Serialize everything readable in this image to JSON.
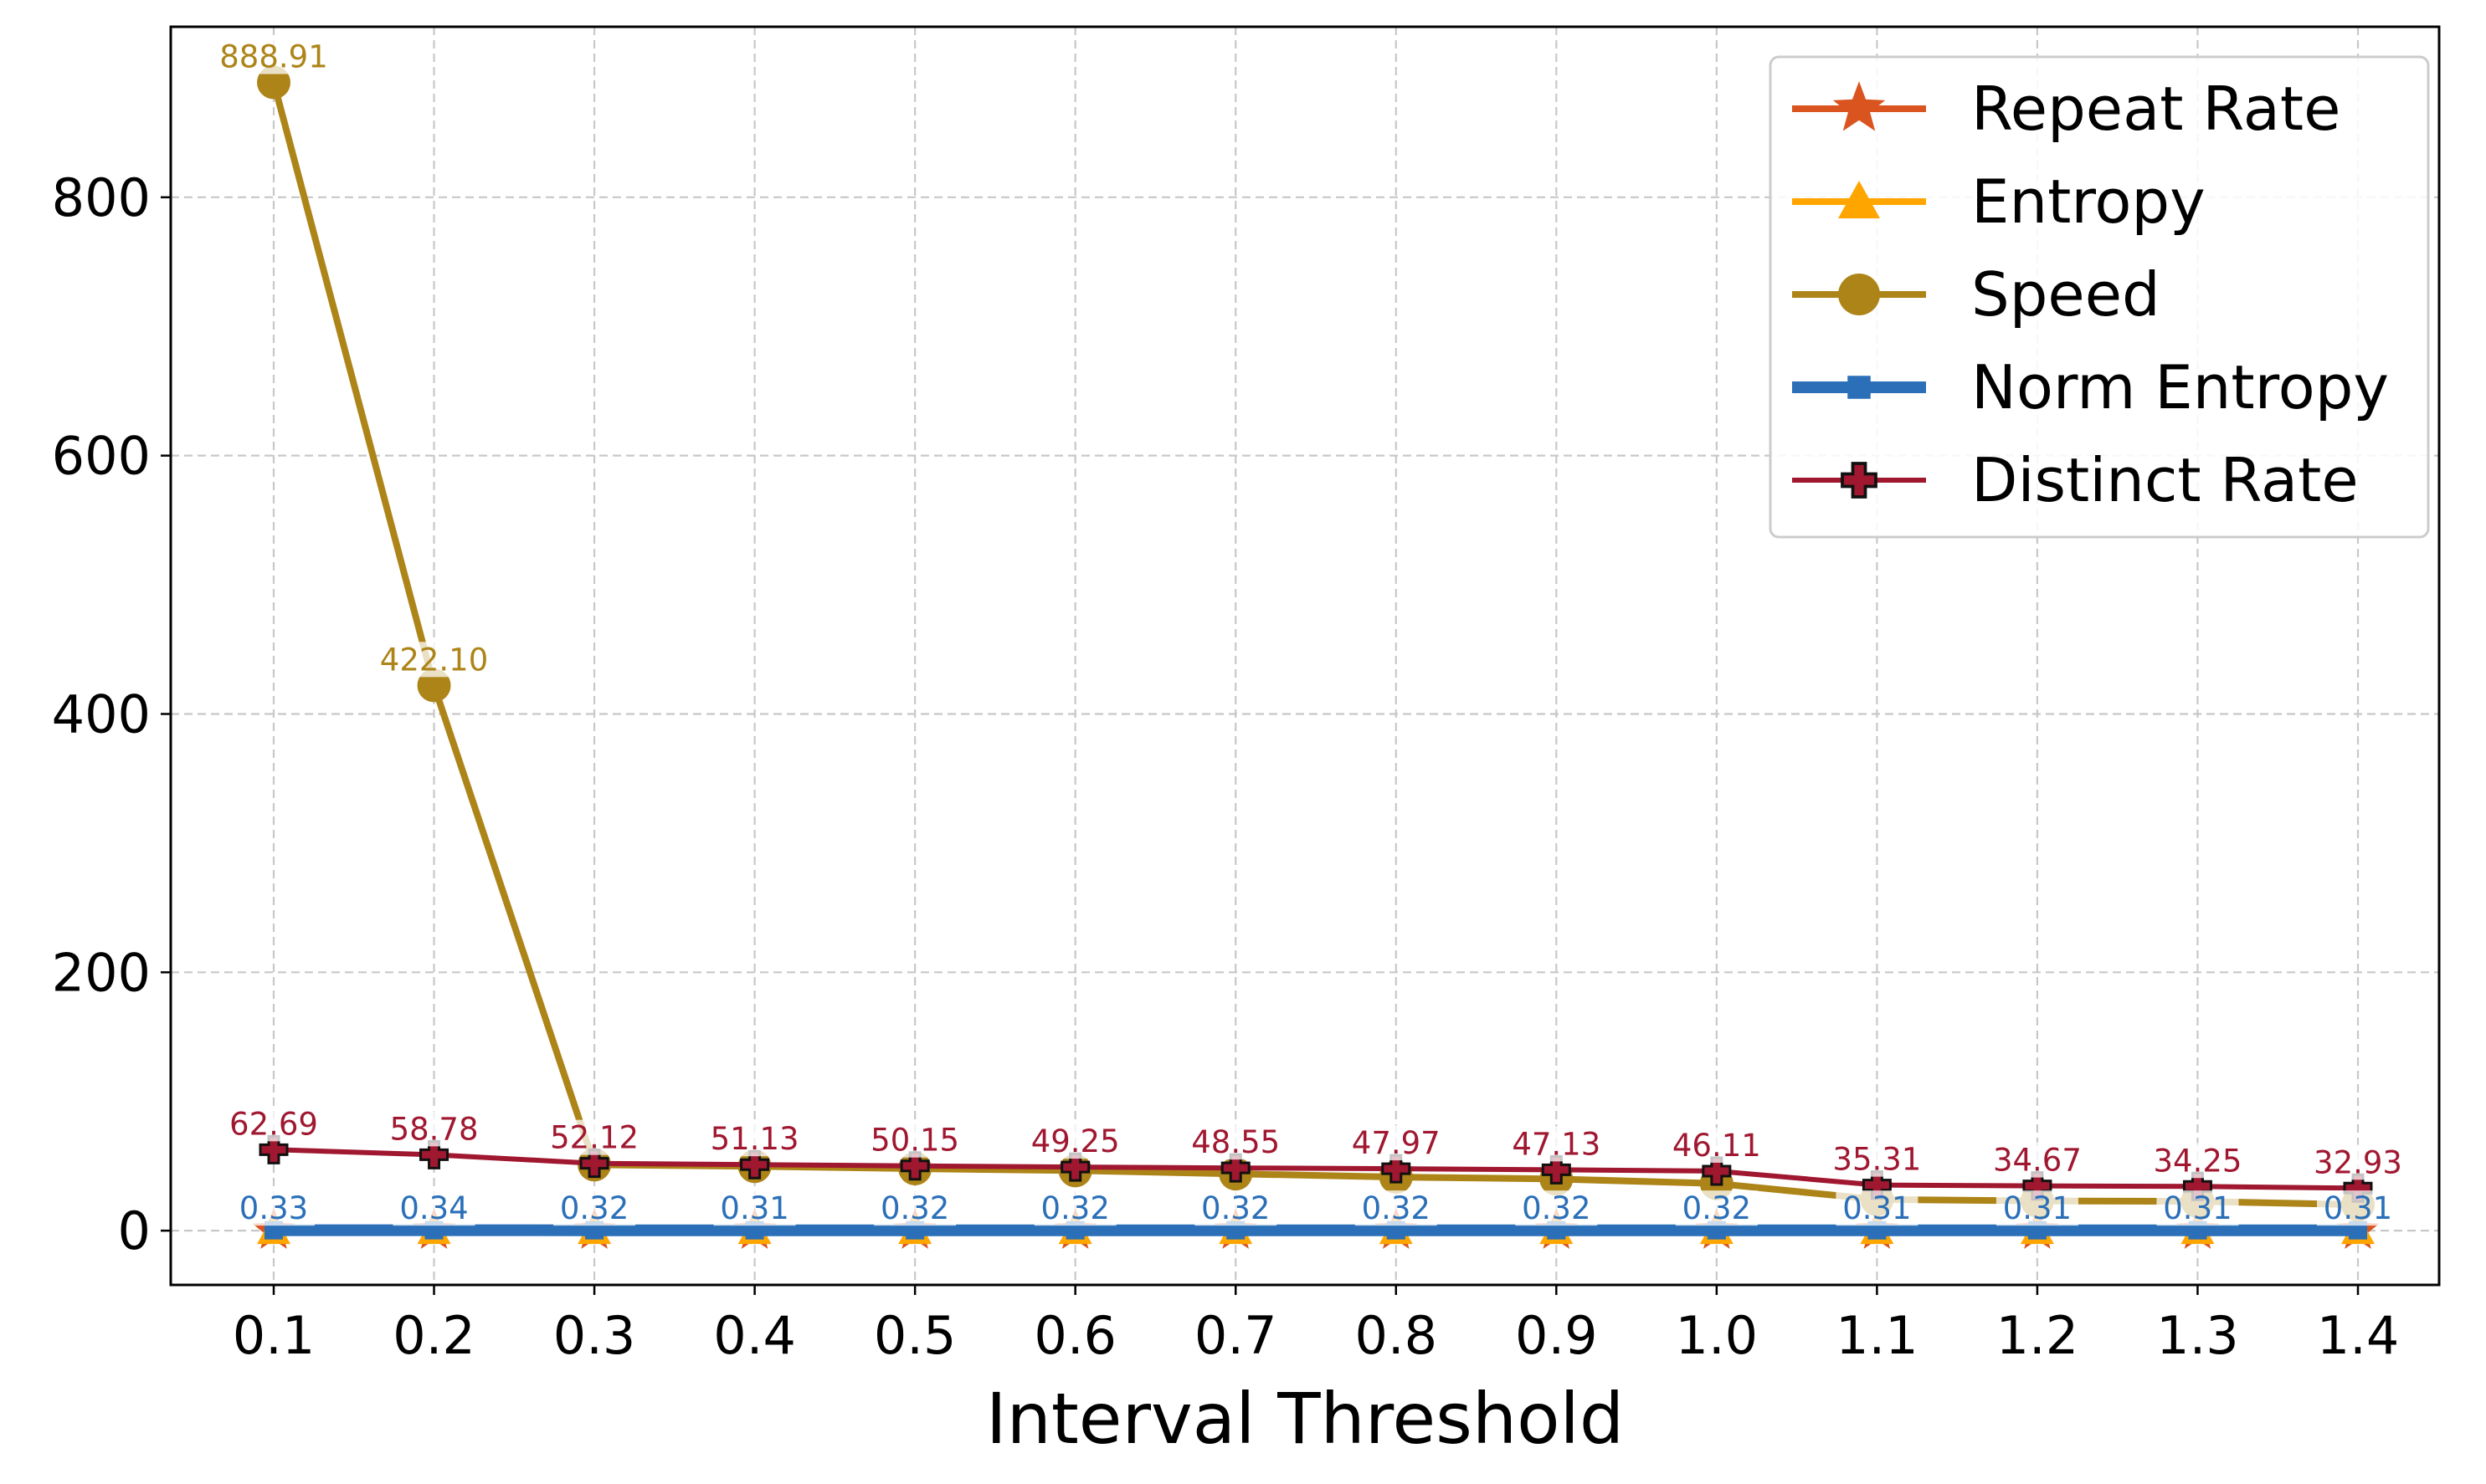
{
  "chart_data": {
    "type": "line",
    "title": "",
    "xlabel": "Interval Threshold",
    "ylabel": "",
    "categories": [
      "0.1",
      "0.2",
      "0.3",
      "0.4",
      "0.5",
      "0.6",
      "0.7",
      "0.8",
      "0.9",
      "1.0",
      "1.1",
      "1.2",
      "1.3",
      "1.4"
    ],
    "x": [
      0.1,
      0.2,
      0.3,
      0.4,
      0.5,
      0.6,
      0.7,
      0.8,
      0.9,
      1.0,
      1.1,
      1.2,
      1.3,
      1.4
    ],
    "ylim": [
      -42,
      932
    ],
    "yticks": [
      0,
      200,
      400,
      600,
      800
    ],
    "ytick_labels": [
      "0",
      "200",
      "400",
      "600",
      "800"
    ],
    "grid": true,
    "legend_position": "top-right",
    "series": [
      {
        "name": "Repeat Rate",
        "color": "#d9541e",
        "marker": "star",
        "values": [
          0,
          0,
          0,
          0,
          0,
          0,
          0,
          0,
          0,
          0,
          0,
          0,
          0,
          0
        ],
        "labels": []
      },
      {
        "name": "Entropy",
        "color": "#ffa500",
        "marker": "triangle",
        "values": [
          0,
          0,
          0,
          0,
          0,
          0,
          0,
          0,
          0,
          0,
          0,
          0,
          0,
          0
        ],
        "labels": []
      },
      {
        "name": "Speed",
        "color": "#ad8418",
        "marker": "circle",
        "values": [
          888.91,
          422.1,
          51.0,
          49.8,
          48.0,
          46.5,
          44.0,
          41.5,
          40.0,
          36.5,
          24.15,
          22.99,
          22.67,
          20.1
        ],
        "labels": [
          "888.91",
          "422.10",
          "",
          "",
          "",
          "",
          "",
          "",
          "",
          "",
          "",
          "",
          "",
          ""
        ]
      },
      {
        "name": "Norm Entropy",
        "color": "#2a6fb8",
        "marker": "square",
        "values": [
          0.33,
          0.34,
          0.32,
          0.31,
          0.32,
          0.32,
          0.32,
          0.32,
          0.32,
          0.32,
          0.31,
          0.31,
          0.31,
          0.31
        ],
        "labels": [
          "0.33",
          "0.34",
          "0.32",
          "0.31",
          "0.32",
          "0.32",
          "0.32",
          "0.32",
          "0.32",
          "0.32",
          "0.31",
          "0.31",
          "0.31",
          "0.31"
        ]
      },
      {
        "name": "Distinct Rate",
        "color": "#a01730",
        "marker": "plus",
        "values": [
          62.69,
          58.78,
          52.12,
          51.13,
          50.15,
          49.25,
          48.55,
          47.97,
          47.13,
          46.11,
          35.31,
          34.67,
          34.25,
          32.93
        ],
        "labels": [
          "62.69",
          "58.78",
          "52.12",
          "51.13",
          "50.15",
          "49.25",
          "48.55",
          "47.97",
          "47.13",
          "46.11",
          "35.31",
          "34.67",
          "34.25",
          "32.93"
        ]
      }
    ]
  }
}
